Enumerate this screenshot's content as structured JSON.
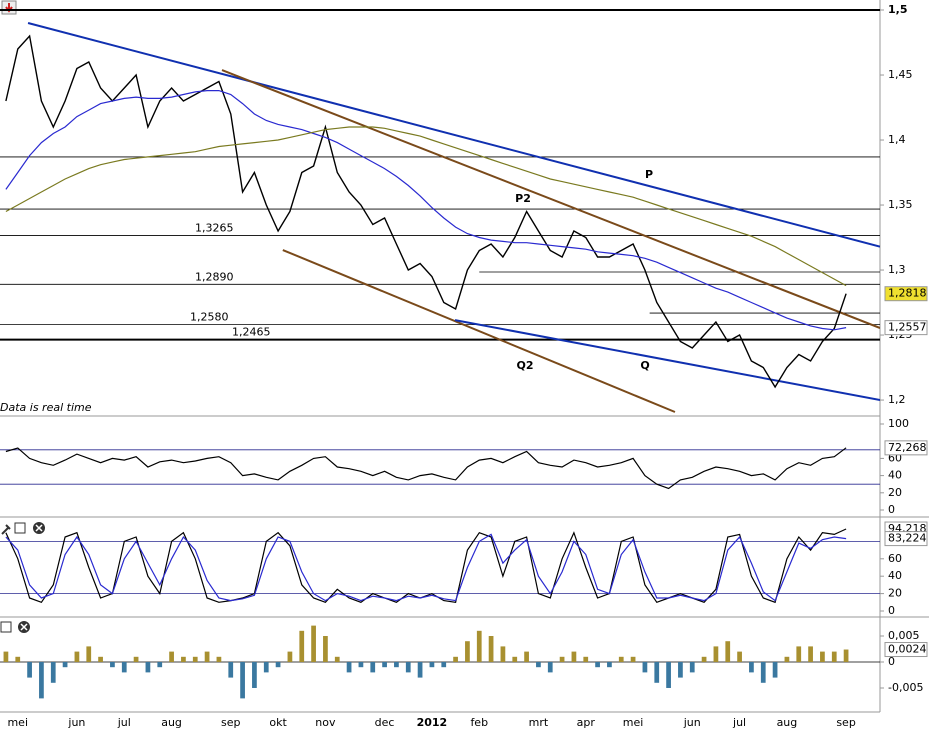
{
  "chart_data": [
    {
      "type": "line",
      "categories": [
        null,
        "mei",
        null,
        null,
        null,
        null,
        "jun",
        null,
        null,
        null,
        "jul",
        null,
        null,
        null,
        "aug",
        null,
        null,
        null,
        null,
        "sep",
        null,
        null,
        null,
        "okt",
        null,
        null,
        null,
        "nov",
        null,
        null,
        null,
        null,
        "dec",
        null,
        null,
        null,
        "2012",
        null,
        null,
        null,
        "feb",
        null,
        null,
        null,
        null,
        "mrt",
        null,
        null,
        null,
        "apr",
        null,
        null,
        null,
        "mei",
        null,
        null,
        null,
        null,
        "jun",
        null,
        null,
        null,
        "jul",
        null,
        null,
        null,
        "aug",
        null,
        null,
        null,
        null,
        "sep"
      ],
      "series": [
        {
          "color": "#000000",
          "values": [
            1.43,
            1.47,
            1.48,
            1.43,
            1.41,
            1.43,
            1.455,
            1.46,
            1.44,
            1.43,
            1.44,
            1.45,
            1.41,
            1.43,
            1.44,
            1.43,
            1.435,
            1.44,
            1.445,
            1.42,
            1.36,
            1.375,
            1.35,
            1.33,
            1.345,
            1.375,
            1.38,
            1.41,
            1.375,
            1.36,
            1.35,
            1.335,
            1.34,
            1.32,
            1.3,
            1.305,
            1.295,
            1.275,
            1.27,
            1.3,
            1.315,
            1.32,
            1.31,
            1.325,
            1.345,
            1.33,
            1.315,
            1.31,
            1.33,
            1.325,
            1.31,
            1.31,
            1.315,
            1.32,
            1.3,
            1.275,
            1.26,
            1.245,
            1.24,
            1.25,
            1.26,
            1.245,
            1.25,
            1.23,
            1.225,
            1.21,
            1.225,
            1.235,
            1.23,
            1.245,
            1.255,
            1.2818
          ]
        },
        {
          "color": "#2a2ad0",
          "values": [
            1.362,
            1.375,
            1.388,
            1.398,
            1.405,
            1.41,
            1.418,
            1.423,
            1.428,
            1.43,
            1.432,
            1.433,
            1.432,
            1.432,
            1.433,
            1.435,
            1.437,
            1.438,
            1.438,
            1.435,
            1.428,
            1.42,
            1.415,
            1.412,
            1.41,
            1.408,
            1.405,
            1.402,
            1.398,
            1.393,
            1.388,
            1.383,
            1.378,
            1.372,
            1.365,
            1.357,
            1.348,
            1.34,
            1.333,
            1.328,
            1.325,
            1.323,
            1.322,
            1.321,
            1.321,
            1.32,
            1.319,
            1.318,
            1.317,
            1.316,
            1.314,
            1.313,
            1.312,
            1.311,
            1.309,
            1.306,
            1.302,
            1.298,
            1.294,
            1.29,
            1.286,
            1.283,
            1.279,
            1.275,
            1.271,
            1.267,
            1.263,
            1.26,
            1.257,
            1.255,
            1.254,
            1.2557
          ]
        },
        {
          "color": "#7a7a20",
          "values": [
            1.345,
            1.35,
            1.355,
            1.36,
            1.365,
            1.37,
            1.374,
            1.378,
            1.381,
            1.383,
            1.385,
            1.386,
            1.387,
            1.388,
            1.389,
            1.39,
            1.391,
            1.393,
            1.395,
            1.396,
            1.397,
            1.398,
            1.399,
            1.4,
            1.402,
            1.404,
            1.406,
            1.408,
            1.409,
            1.41,
            1.41,
            1.41,
            1.409,
            1.407,
            1.405,
            1.403,
            1.4,
            1.397,
            1.394,
            1.391,
            1.388,
            1.385,
            1.382,
            1.379,
            1.376,
            1.373,
            1.37,
            1.368,
            1.366,
            1.364,
            1.362,
            1.36,
            1.358,
            1.356,
            1.353,
            1.35,
            1.347,
            1.344,
            1.341,
            1.338,
            1.335,
            1.332,
            1.329,
            1.326,
            1.322,
            1.318,
            1.313,
            1.308,
            1.303,
            1.298,
            1.293,
            1.288
          ]
        }
      ],
      "ylim": [
        1.1885,
        1.5077
      ],
      "yticks": [
        {
          "value": 1.5,
          "label": "1,5"
        },
        {
          "value": 1.45,
          "label": "1,45"
        },
        {
          "value": 1.4,
          "label": "1,4"
        },
        {
          "value": 1.35,
          "label": "1,35"
        },
        {
          "value": 1.3,
          "label": "1,3"
        },
        {
          "value": 1.25,
          "label": "1,25"
        },
        {
          "value": 1.2,
          "label": "1,2"
        }
      ],
      "hlines": [
        {
          "value": 1.5,
          "thick": true
        },
        {
          "value": 1.387
        },
        {
          "value": 1.3469
        },
        {
          "value": 1.3265,
          "label": "1,3265"
        },
        {
          "value": 1.289,
          "label": "1,2890"
        },
        {
          "value": 1.2985
        },
        {
          "value": 1.2669
        },
        {
          "value": 1.258,
          "label": "1,2580"
        },
        {
          "value": 1.2465,
          "label": "1,2465",
          "thick": true
        }
      ],
      "trendlines": [
        {
          "label": "P",
          "color": "#1030b0",
          "points": [
            [
              1.87,
              1.49
            ],
            [
              73.87,
              1.318
            ]
          ]
        },
        {
          "label": "P2",
          "color": "#7a4a1a",
          "points": [
            [
              18.26,
              1.4538
            ],
            [
              73.87,
              1.2554
            ]
          ]
        },
        {
          "label": "Q2",
          "color": "#7a4a1a",
          "points": [
            [
              23.4,
              1.3154
            ],
            [
              56.54,
              1.1908
            ]
          ]
        },
        {
          "label": "Q",
          "color": "#1030b0",
          "points": [
            [
              37.95,
              1.2615
            ],
            [
              73.87,
              1.2
            ]
          ]
        }
      ],
      "markers": [
        {
          "value": 1.2818,
          "label": "1,2818",
          "color": "#000000",
          "fill": "#f0e030"
        },
        {
          "value": 1.2557,
          "label": "1,2557",
          "color": "#2a2ad0",
          "fill": "#ffffff"
        }
      ],
      "note": "Data is real time"
    },
    {
      "type": "line",
      "series": [
        {
          "color": "#000000",
          "values": [
            68,
            72,
            60,
            55,
            52,
            58,
            65,
            60,
            55,
            60,
            58,
            62,
            50,
            56,
            58,
            55,
            57,
            60,
            62,
            55,
            40,
            42,
            38,
            35,
            45,
            52,
            60,
            62,
            50,
            48,
            45,
            40,
            45,
            38,
            35,
            40,
            42,
            38,
            35,
            50,
            58,
            60,
            55,
            62,
            68,
            55,
            52,
            50,
            58,
            55,
            50,
            52,
            55,
            60,
            40,
            30,
            25,
            35,
            38,
            45,
            50,
            48,
            45,
            40,
            42,
            35,
            48,
            55,
            52,
            60,
            62,
            72.268
          ]
        }
      ],
      "ylim": [
        0,
        100
      ],
      "yticks": [
        100,
        60,
        40,
        20,
        0
      ],
      "levels": [
        70,
        30
      ],
      "markers": [
        {
          "value": 72.268,
          "label": "72,268",
          "color": "#000000",
          "fill": "#ffffff"
        }
      ]
    },
    {
      "type": "line",
      "series": [
        {
          "color": "#000000",
          "values": [
            90,
            60,
            15,
            10,
            30,
            85,
            90,
            50,
            15,
            20,
            80,
            85,
            40,
            20,
            80,
            90,
            60,
            15,
            10,
            12,
            15,
            20,
            80,
            90,
            75,
            30,
            15,
            10,
            25,
            15,
            10,
            20,
            15,
            10,
            20,
            15,
            20,
            12,
            10,
            70,
            90,
            85,
            40,
            80,
            85,
            20,
            15,
            60,
            90,
            50,
            15,
            20,
            80,
            85,
            30,
            10,
            15,
            20,
            15,
            10,
            25,
            85,
            88,
            40,
            15,
            10,
            60,
            85,
            70,
            90,
            88,
            94.218
          ]
        },
        {
          "color": "#2a2ad0",
          "values": [
            85,
            70,
            30,
            15,
            20,
            65,
            85,
            65,
            30,
            20,
            60,
            80,
            55,
            30,
            60,
            85,
            70,
            35,
            15,
            12,
            14,
            18,
            60,
            85,
            80,
            45,
            20,
            12,
            20,
            17,
            12,
            17,
            15,
            12,
            17,
            15,
            18,
            14,
            12,
            50,
            80,
            88,
            55,
            70,
            82,
            40,
            20,
            45,
            80,
            65,
            25,
            20,
            65,
            82,
            45,
            15,
            15,
            18,
            15,
            12,
            20,
            70,
            85,
            55,
            22,
            12,
            45,
            78,
            72,
            82,
            85,
            83.224
          ]
        }
      ],
      "ylim": [
        0,
        100
      ],
      "yticks": [
        60,
        40,
        20,
        0
      ],
      "levels": [
        80,
        20
      ],
      "markers": [
        {
          "value": 94.218,
          "label": "94,218",
          "color": "#000000",
          "fill": "#ffffff"
        },
        {
          "value": 83.224,
          "label": "83,224",
          "color": "#2a2ad0",
          "fill": "#ffffff"
        }
      ]
    },
    {
      "type": "bar",
      "values": [
        0.002,
        0.001,
        -0.003,
        -0.007,
        -0.004,
        -0.001,
        0.002,
        0.003,
        0.001,
        -0.001,
        -0.002,
        0.001,
        -0.002,
        -0.001,
        0.002,
        0.001,
        0.001,
        0.002,
        0.001,
        -0.003,
        -0.007,
        -0.005,
        -0.002,
        -0.001,
        0.002,
        0.006,
        0.007,
        0.005,
        0.001,
        -0.002,
        -0.001,
        -0.002,
        -0.001,
        -0.001,
        -0.002,
        -0.003,
        -0.001,
        -0.001,
        0.001,
        0.004,
        0.006,
        0.005,
        0.003,
        0.001,
        0.002,
        -0.001,
        -0.002,
        0.001,
        0.002,
        0.001,
        -0.001,
        -0.001,
        0.001,
        0.001,
        -0.002,
        -0.004,
        -0.005,
        -0.003,
        -0.002,
        0.001,
        0.003,
        0.004,
        0.002,
        -0.002,
        -0.004,
        -0.003,
        0.001,
        0.003,
        0.003,
        0.002,
        0.002,
        0.0024
      ],
      "color_up": "#a89030",
      "color_down": "#3a78a0",
      "ylim": [
        -0.00962,
        0.00808
      ],
      "yticks": [
        {
          "value": 0.005,
          "label": "0,005"
        },
        0,
        {
          "value": -0.005,
          "label": "-0,005"
        }
      ],
      "markers": [
        {
          "value": 0.0024,
          "label": "0,0024",
          "color": "#8a7010",
          "fill": "#ffffff"
        }
      ]
    }
  ]
}
